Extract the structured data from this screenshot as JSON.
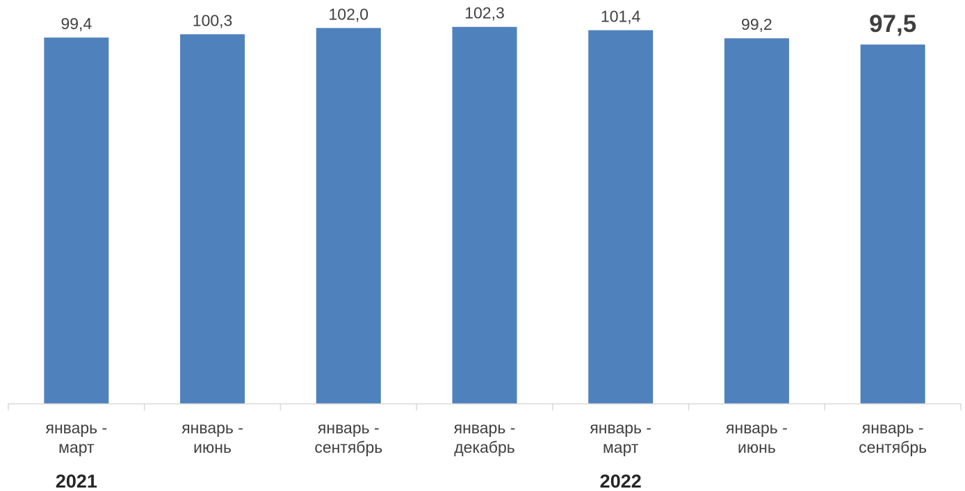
{
  "chart_data": {
    "type": "bar",
    "categories": [
      [
        "январь -",
        "март"
      ],
      [
        "январь -",
        "июнь"
      ],
      [
        "январь -",
        "сентябрь"
      ],
      [
        "январь -",
        "декабрь"
      ],
      [
        "январь -",
        "март"
      ],
      [
        "январь -",
        "июнь"
      ],
      [
        "январь -",
        "сентябрь"
      ]
    ],
    "values": [
      99.4,
      100.3,
      102.0,
      102.3,
      101.4,
      99.2,
      97.5
    ],
    "value_labels": [
      "99,4",
      "100,3",
      "102,0",
      "102,3",
      "101,4",
      "99,2",
      "97,5"
    ],
    "highlight_index": 6,
    "group_labels": [
      {
        "label": "2021",
        "start_index": 0
      },
      {
        "label": "2022",
        "start_index": 4
      }
    ],
    "title": "",
    "xlabel": "",
    "ylabel": "",
    "ylim": [
      0,
      103
    ],
    "grid": false,
    "legend": "none",
    "colors": {
      "bar": "#4f81bd",
      "highlight_label": "#c00000",
      "axis": "#d9d9d9"
    }
  }
}
